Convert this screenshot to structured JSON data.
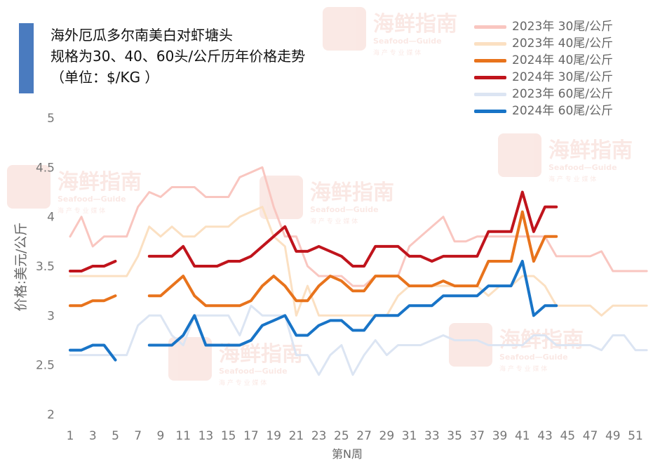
{
  "title": {
    "line1": "海外厄瓜多尔南美白对虾塘头",
    "line2": "规格为30、40、60头/公斤历年价格走势",
    "line3": "（单位：$/KG ）"
  },
  "watermark": {
    "main": "海鲜指南",
    "sub": "Seafood—Guide",
    "tag": "海 产 专 业 媒 体"
  },
  "chart_data": {
    "type": "line",
    "xlabel": "第N周",
    "ylabel": "价格:美元/公斤",
    "ylim": [
      2,
      5
    ],
    "yticks": [
      2,
      2.5,
      3,
      3.5,
      4,
      4.5,
      5
    ],
    "xlim": [
      1,
      51
    ],
    "xticks": [
      1,
      3,
      5,
      7,
      9,
      11,
      13,
      15,
      17,
      19,
      21,
      23,
      25,
      27,
      29,
      31,
      33,
      35,
      37,
      39,
      41,
      43,
      45,
      47,
      49,
      51
    ],
    "grid": false,
    "legend_position": "top-right",
    "series": [
      {
        "name": "2023年 30尾/公斤",
        "color": "#f9c6c0",
        "width": 3,
        "values": [
          3.8,
          4.0,
          3.7,
          3.8,
          3.8,
          3.8,
          4.1,
          4.25,
          4.2,
          4.3,
          4.3,
          4.3,
          4.2,
          4.2,
          4.2,
          4.4,
          4.45,
          4.5,
          4.1,
          3.8,
          3.8,
          3.5,
          3.4,
          3.4,
          3.4,
          3.3,
          3.3,
          3.4,
          3.4,
          3.4,
          3.7,
          3.8,
          3.9,
          4.0,
          3.75,
          3.75,
          3.8,
          3.8,
          3.8,
          3.8,
          3.8,
          3.8,
          3.8,
          3.6,
          3.6,
          3.6,
          3.6,
          3.65,
          3.45,
          3.45,
          3.45,
          3.45
        ]
      },
      {
        "name": "2023年 40尾/公斤",
        "color": "#fbe0c2",
        "width": 3,
        "values": [
          3.4,
          3.4,
          3.4,
          3.4,
          3.4,
          3.4,
          3.6,
          3.9,
          3.8,
          3.9,
          3.8,
          3.8,
          3.9,
          3.9,
          3.9,
          4.0,
          4.05,
          4.1,
          3.8,
          3.7,
          3.0,
          3.3,
          3.0,
          3.0,
          3.0,
          3.0,
          3.0,
          3.0,
          3.0,
          3.2,
          3.3,
          3.3,
          3.3,
          3.3,
          3.3,
          3.3,
          3.3,
          3.2,
          3.3,
          3.3,
          3.4,
          3.4,
          3.3,
          3.1,
          3.1,
          3.1,
          3.1,
          3.0,
          3.1,
          3.1,
          3.1,
          3.1
        ]
      },
      {
        "name": "2024年 40尾/公斤",
        "color": "#e8731c",
        "width": 4,
        "values": [
          3.1,
          3.1,
          3.15,
          3.15,
          3.2,
          null,
          null,
          3.2,
          3.2,
          3.3,
          3.4,
          3.2,
          3.1,
          3.1,
          3.1,
          3.1,
          3.15,
          3.3,
          3.4,
          3.3,
          3.15,
          3.15,
          3.3,
          3.4,
          3.35,
          3.25,
          3.25,
          3.4,
          3.4,
          3.4,
          3.3,
          3.3,
          3.3,
          3.35,
          3.3,
          3.3,
          3.3,
          3.55,
          3.55,
          3.55,
          4.05,
          3.55,
          3.8,
          3.8
        ]
      },
      {
        "name": "2024年 30尾/公斤",
        "color": "#c0141c",
        "width": 4,
        "values": [
          3.45,
          3.45,
          3.5,
          3.5,
          3.55,
          null,
          null,
          3.6,
          3.6,
          3.6,
          3.7,
          3.5,
          3.5,
          3.5,
          3.55,
          3.55,
          3.6,
          3.7,
          3.8,
          3.9,
          3.65,
          3.65,
          3.7,
          3.65,
          3.6,
          3.5,
          3.5,
          3.7,
          3.7,
          3.7,
          3.6,
          3.6,
          3.55,
          3.6,
          3.6,
          3.6,
          3.6,
          3.85,
          3.85,
          3.85,
          4.25,
          3.85,
          4.1,
          4.1
        ]
      },
      {
        "name": "2023年 60尾/公斤",
        "color": "#dce5f3",
        "width": 3,
        "values": [
          2.6,
          2.6,
          2.6,
          2.6,
          2.6,
          2.6,
          2.9,
          3.0,
          3.0,
          2.8,
          2.7,
          3.0,
          3.0,
          3.0,
          3.0,
          2.8,
          3.1,
          3.0,
          3.0,
          3.0,
          2.6,
          2.6,
          2.4,
          2.6,
          2.7,
          2.4,
          2.6,
          2.75,
          2.6,
          2.7,
          2.7,
          2.7,
          2.75,
          2.8,
          2.75,
          2.75,
          2.75,
          2.7,
          2.7,
          2.7,
          2.7,
          2.8,
          2.8,
          2.7,
          2.7,
          2.7,
          2.7,
          2.65,
          2.8,
          2.8,
          2.65,
          2.65
        ]
      },
      {
        "name": "2024年 60尾/公斤",
        "color": "#1874c7",
        "width": 4,
        "values": [
          2.65,
          2.65,
          2.7,
          2.7,
          2.55,
          null,
          null,
          2.7,
          2.7,
          2.7,
          2.8,
          3.0,
          2.7,
          2.7,
          2.7,
          2.7,
          2.75,
          2.9,
          2.95,
          3.0,
          2.8,
          2.8,
          2.9,
          2.95,
          2.95,
          2.85,
          2.85,
          3.0,
          3.0,
          3.0,
          3.1,
          3.1,
          3.1,
          3.2,
          3.2,
          3.2,
          3.2,
          3.3,
          3.3,
          3.3,
          3.55,
          3.0,
          3.1,
          3.1
        ]
      }
    ]
  }
}
